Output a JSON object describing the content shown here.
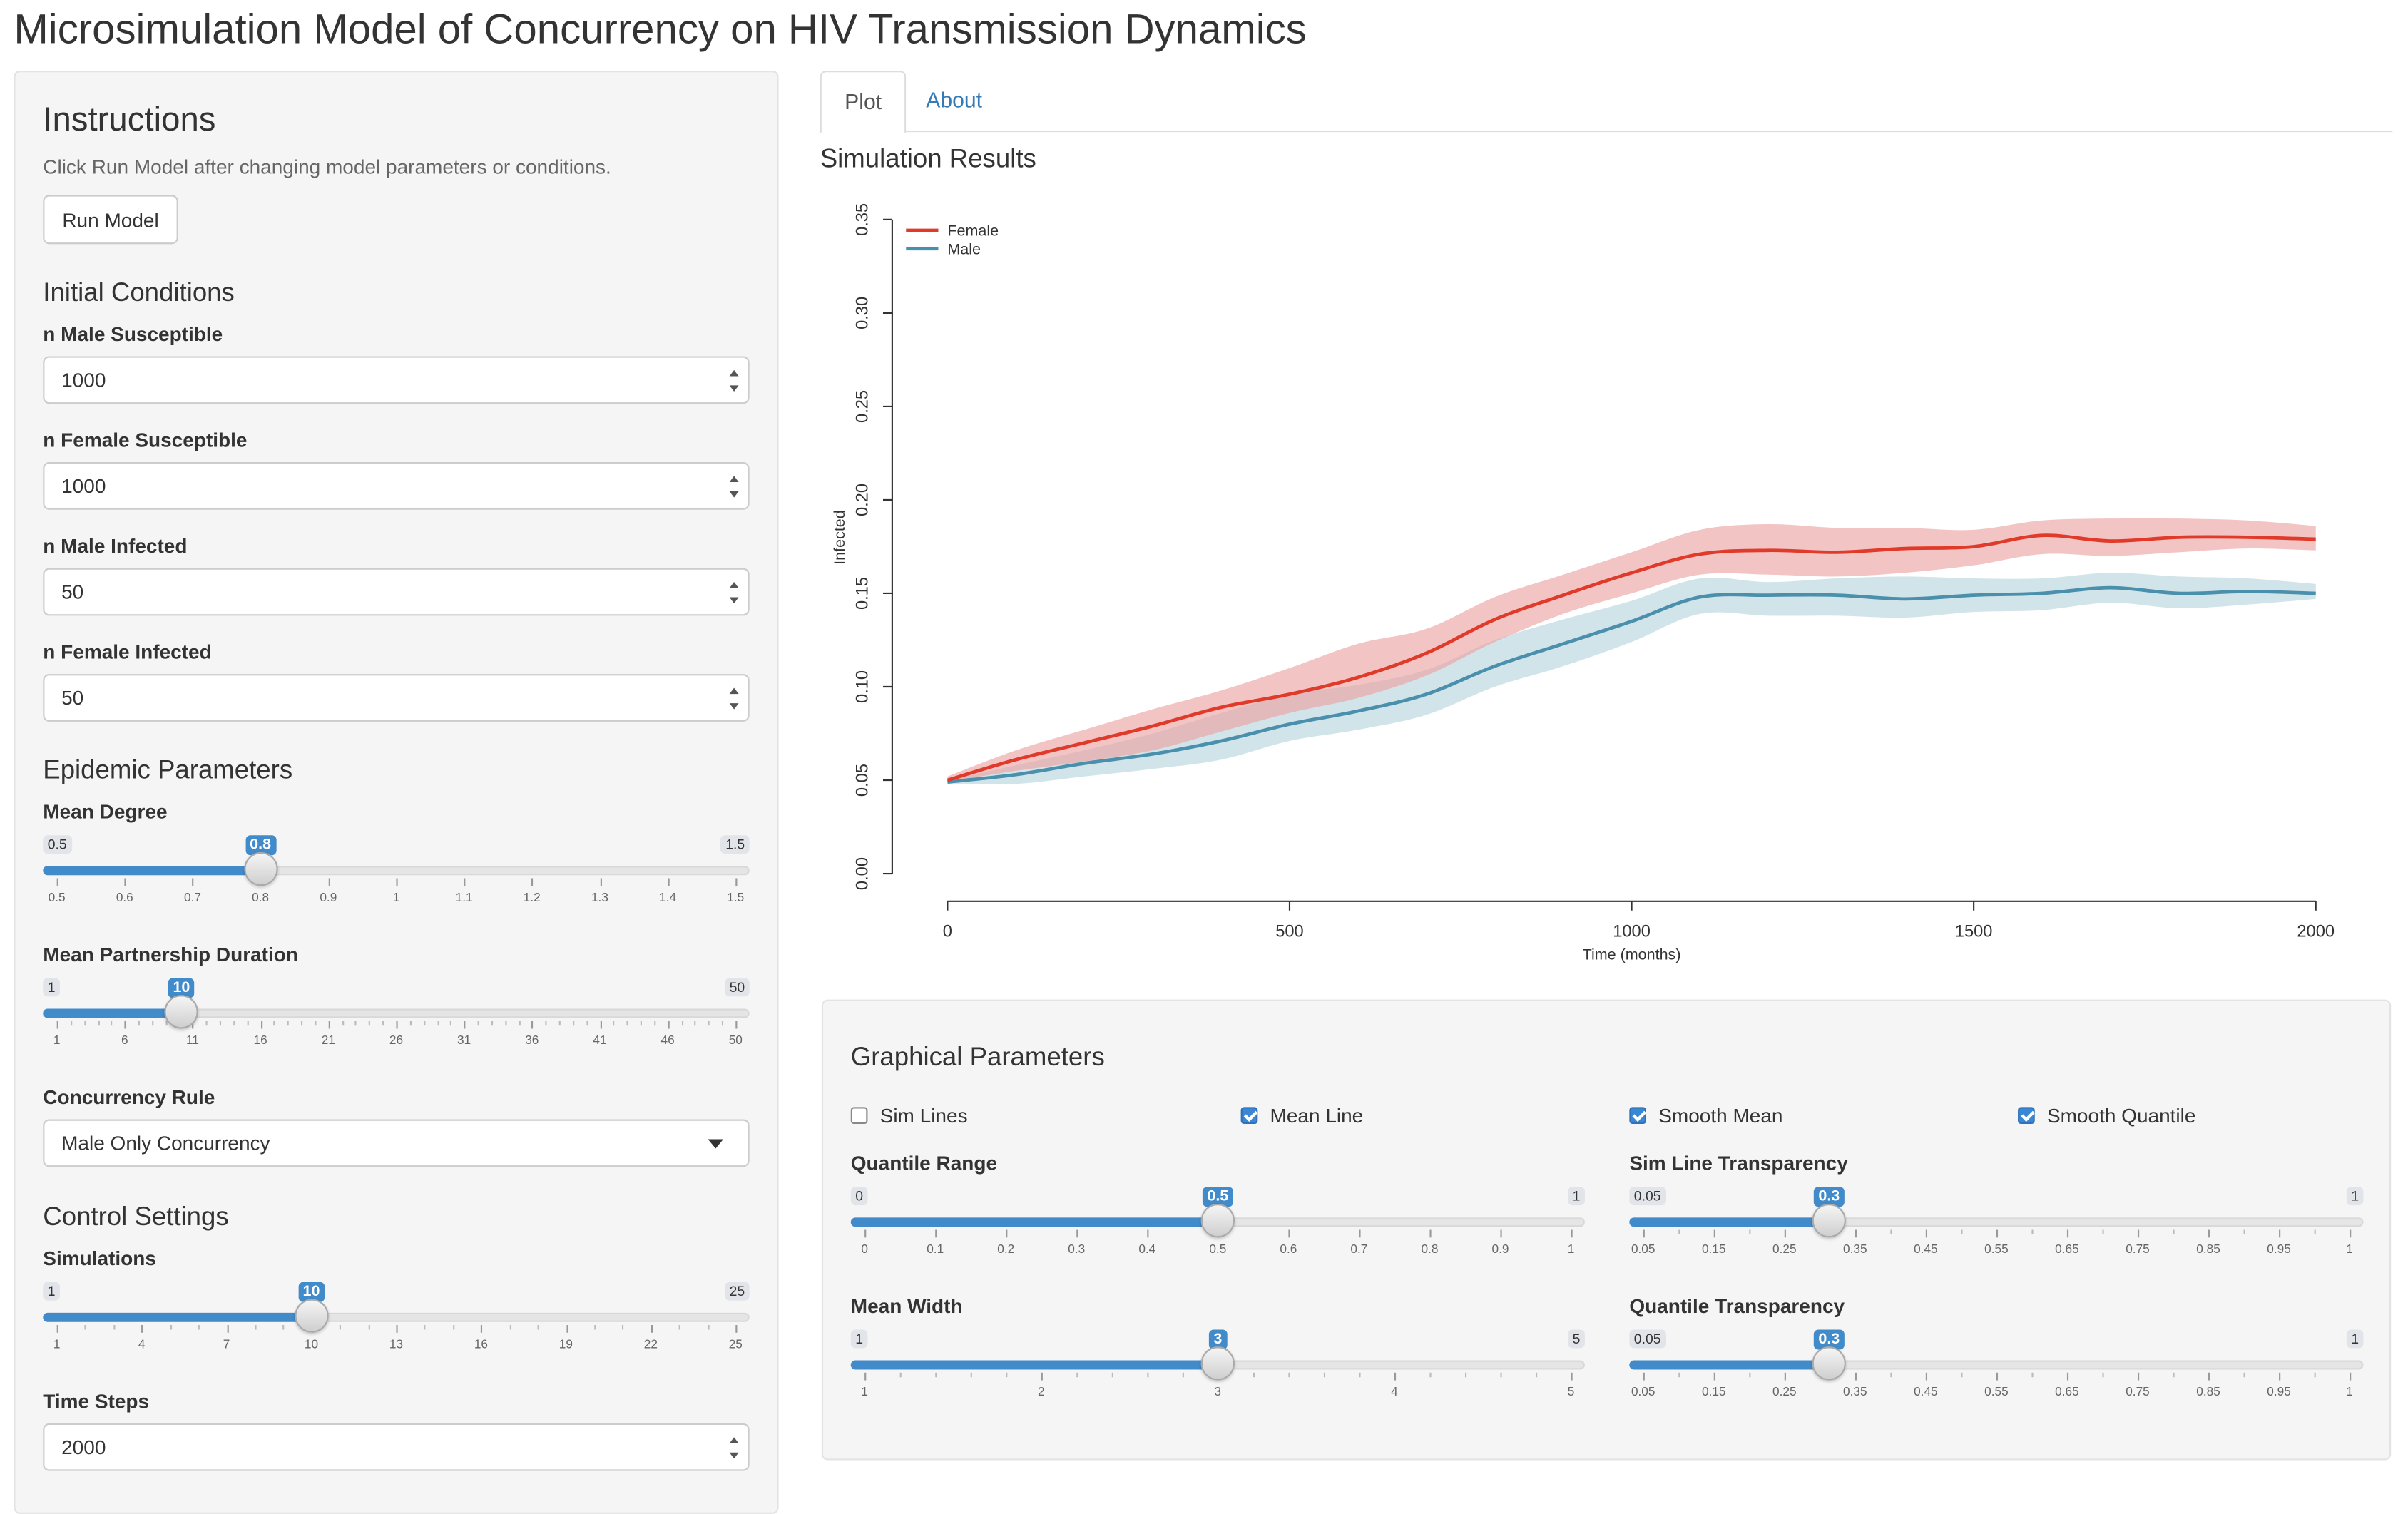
{
  "app_title": "Microsimulation Model of Concurrency on HIV Transmission Dynamics",
  "sidebar": {
    "instructions_heading": "Instructions",
    "instructions_text": "Click Run Model after changing model parameters or conditions.",
    "run_button": "Run Model",
    "initial_conditions_heading": "Initial Conditions",
    "inputs": [
      {
        "label": "n Male Susceptible",
        "value": "1000"
      },
      {
        "label": "n Female Susceptible",
        "value": "1000"
      },
      {
        "label": "n Male Infected",
        "value": "50"
      },
      {
        "label": "n Female Infected",
        "value": "50"
      }
    ],
    "epidemic_heading": "Epidemic Parameters",
    "mean_degree": {
      "label": "Mean Degree",
      "min": 0.5,
      "max": 1.5,
      "value": 0.8,
      "min_label": "0.5",
      "max_label": "1.5",
      "value_label": "0.8",
      "ticks": [
        "0.5",
        "0.6",
        "0.7",
        "0.8",
        "0.9",
        "1",
        "1.1",
        "1.2",
        "1.3",
        "1.4",
        "1.5"
      ],
      "minor_per_major": 0
    },
    "partnership_duration": {
      "label": "Mean Partnership Duration",
      "min": 1,
      "max": 50,
      "value": 10,
      "min_label": "1",
      "max_label": "50",
      "value_label": "10",
      "ticks": [
        "1",
        "6",
        "11",
        "16",
        "21",
        "26",
        "31",
        "36",
        "41",
        "46",
        "50"
      ],
      "minor_per_major": 4
    },
    "concurrency_label": "Concurrency Rule",
    "concurrency_value": "Male Only Concurrency",
    "control_heading": "Control Settings",
    "simulations": {
      "label": "Simulations",
      "min": 1,
      "max": 25,
      "value": 10,
      "min_label": "1",
      "max_label": "25",
      "value_label": "10",
      "ticks": [
        "1",
        "4",
        "7",
        "10",
        "13",
        "16",
        "19",
        "22",
        "25"
      ],
      "minor_per_major": 2
    },
    "time_steps_label": "Time Steps",
    "time_steps_value": "2000"
  },
  "tabs": [
    {
      "label": "Plot",
      "active": true
    },
    {
      "label": "About",
      "active": false
    }
  ],
  "results_title": "Simulation Results",
  "chart_data": {
    "type": "line",
    "title": "",
    "xlabel": "Time (months)",
    "ylabel": "Infected",
    "xlim": [
      0,
      2000
    ],
    "ylim": [
      0,
      0.35
    ],
    "x_ticks": [
      0,
      500,
      1000,
      1500,
      2000
    ],
    "y_ticks": [
      "0.00",
      "0.05",
      "0.10",
      "0.15",
      "0.20",
      "0.25",
      "0.30",
      "0.35"
    ],
    "legend_position": "top-left",
    "x": [
      0,
      100,
      200,
      300,
      400,
      500,
      600,
      700,
      800,
      900,
      1000,
      1100,
      1200,
      1300,
      1400,
      1500,
      1600,
      1700,
      1800,
      1900,
      2000
    ],
    "series": [
      {
        "name": "Female",
        "color": "#e03a2a",
        "band_color": "#eca5a5",
        "mean": [
          0.05,
          0.061,
          0.07,
          0.079,
          0.089,
          0.096,
          0.105,
          0.118,
          0.136,
          0.149,
          0.161,
          0.171,
          0.173,
          0.172,
          0.174,
          0.175,
          0.181,
          0.178,
          0.18,
          0.18,
          0.179
        ],
        "lower": [
          0.049,
          0.055,
          0.06,
          0.066,
          0.076,
          0.086,
          0.094,
          0.106,
          0.124,
          0.139,
          0.15,
          0.16,
          0.16,
          0.159,
          0.161,
          0.165,
          0.171,
          0.17,
          0.172,
          0.174,
          0.173
        ],
        "upper": [
          0.052,
          0.066,
          0.077,
          0.088,
          0.098,
          0.11,
          0.123,
          0.131,
          0.148,
          0.16,
          0.172,
          0.184,
          0.187,
          0.185,
          0.185,
          0.184,
          0.189,
          0.19,
          0.19,
          0.189,
          0.186
        ]
      },
      {
        "name": "Male",
        "color": "#4a8fab",
        "band_color": "#b9d5df",
        "mean": [
          0.049,
          0.053,
          0.059,
          0.064,
          0.071,
          0.08,
          0.087,
          0.096,
          0.111,
          0.123,
          0.135,
          0.148,
          0.149,
          0.149,
          0.147,
          0.149,
          0.15,
          0.153,
          0.15,
          0.151,
          0.15
        ],
        "lower": [
          0.048,
          0.048,
          0.052,
          0.056,
          0.061,
          0.071,
          0.077,
          0.085,
          0.1,
          0.111,
          0.124,
          0.139,
          0.138,
          0.138,
          0.137,
          0.14,
          0.141,
          0.145,
          0.142,
          0.144,
          0.147
        ],
        "upper": [
          0.05,
          0.058,
          0.066,
          0.075,
          0.086,
          0.096,
          0.101,
          0.109,
          0.125,
          0.136,
          0.146,
          0.158,
          0.156,
          0.158,
          0.159,
          0.158,
          0.158,
          0.161,
          0.159,
          0.158,
          0.155
        ]
      }
    ]
  },
  "graphical": {
    "heading": "Graphical Parameters",
    "checkboxes": [
      {
        "label": "Sim Lines",
        "checked": false
      },
      {
        "label": "Mean Line",
        "checked": true
      },
      {
        "label": "Smooth Mean",
        "checked": true
      },
      {
        "label": "Smooth Quantile",
        "checked": true
      }
    ],
    "quantile_range": {
      "label": "Quantile Range",
      "min": 0,
      "max": 1,
      "value": 0.5,
      "min_label": "0",
      "max_label": "1",
      "value_label": "0.5",
      "ticks": [
        "0",
        "0.1",
        "0.2",
        "0.3",
        "0.4",
        "0.5",
        "0.6",
        "0.7",
        "0.8",
        "0.9",
        "1"
      ],
      "minor_per_major": 0
    },
    "sim_line_transparency": {
      "label": "Sim Line Transparency",
      "min": 0.05,
      "max": 1,
      "value": 0.3,
      "min_label": "0.05",
      "max_label": "1",
      "value_label": "0.3",
      "ticks": [
        "0.05",
        "0.15",
        "0.25",
        "0.35",
        "0.45",
        "0.55",
        "0.65",
        "0.75",
        "0.85",
        "0.95",
        "1"
      ],
      "minor_per_major": 1
    },
    "mean_width": {
      "label": "Mean Width",
      "min": 1,
      "max": 5,
      "value": 3,
      "min_label": "1",
      "max_label": "5",
      "value_label": "3",
      "ticks": [
        "1",
        "2",
        "3",
        "4",
        "5"
      ],
      "minor_per_major": 4
    },
    "quantile_transparency": {
      "label": "Quantile Transparency",
      "min": 0.05,
      "max": 1,
      "value": 0.3,
      "min_label": "0.05",
      "max_label": "1",
      "value_label": "0.3",
      "ticks": [
        "0.05",
        "0.15",
        "0.25",
        "0.35",
        "0.45",
        "0.55",
        "0.65",
        "0.75",
        "0.85",
        "0.95",
        "1"
      ],
      "minor_per_major": 1
    }
  }
}
